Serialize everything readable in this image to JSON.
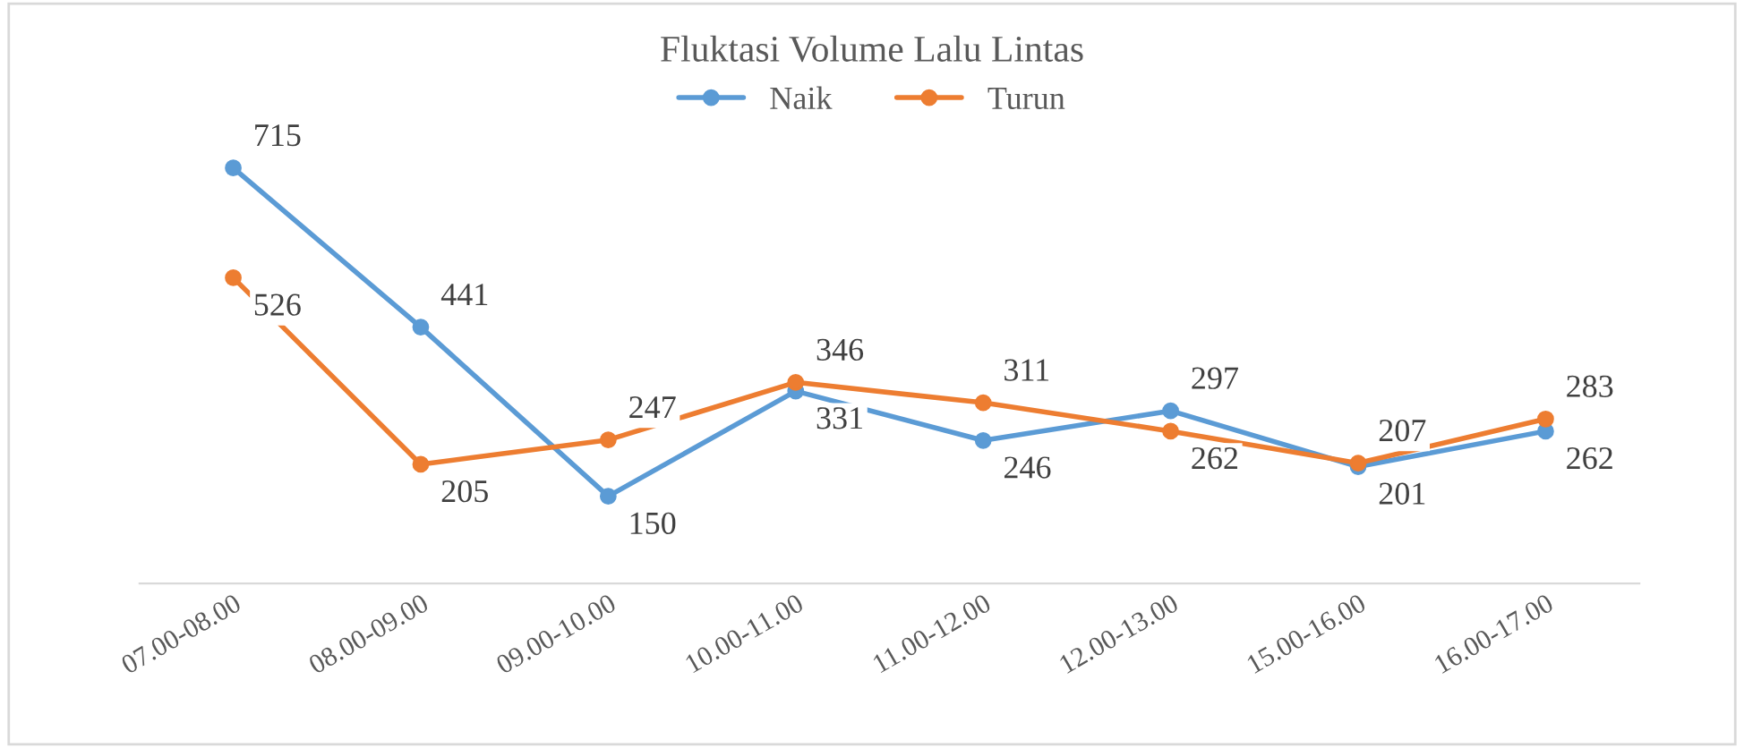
{
  "chart_data": {
    "type": "line",
    "title": "Fluktasi Volume Lalu Lintas",
    "legend": "top",
    "marker": "circle",
    "line_style": "solid",
    "grid": false,
    "data_labels": true,
    "categories": [
      "07.00-08.00",
      "08.00-09.00",
      "09.00-10.00",
      "10.00-11.00",
      "11.00-12.00",
      "12.00-13.00",
      "15.00-16.00",
      "16.00-17.00"
    ],
    "series": [
      {
        "name": "Naik",
        "color": "#5b9bd5",
        "values": [
          715,
          441,
          150,
          331,
          246,
          297,
          201,
          262
        ]
      },
      {
        "name": "Turun",
        "color": "#ed7d31",
        "values": [
          526,
          205,
          247,
          346,
          311,
          262,
          207,
          283
        ]
      }
    ]
  }
}
